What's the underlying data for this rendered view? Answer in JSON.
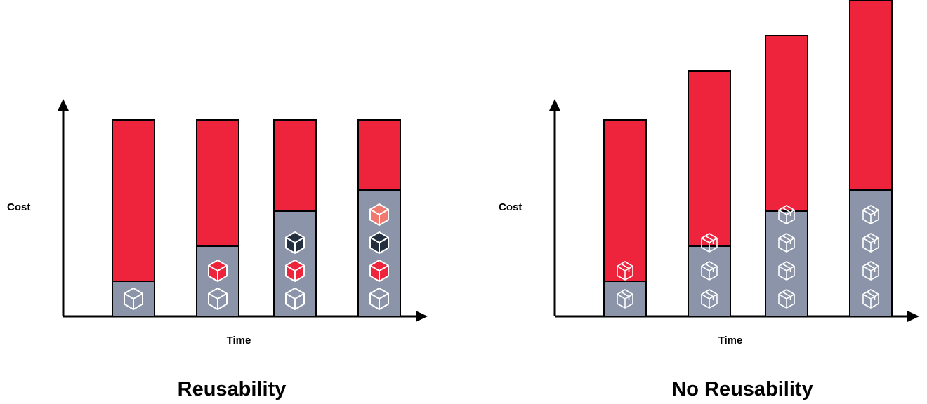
{
  "colors": {
    "red": "#ee243d",
    "slate": "#8b94a8",
    "dark": "#232f3e",
    "light": "#ffffff",
    "light_red": "#f07a70"
  },
  "charts": [
    {
      "id": "reusability",
      "title": "Reusability",
      "ylabel": "Cost",
      "xlabel": "Time",
      "bars": [
        {
          "total": 280,
          "component": 50,
          "icons": [
            "light"
          ]
        },
        {
          "total": 280,
          "component": 100,
          "icons": [
            "light",
            "red"
          ]
        },
        {
          "total": 280,
          "component": 150,
          "icons": [
            "light",
            "red",
            "dark"
          ]
        },
        {
          "total": 280,
          "component": 180,
          "icons": [
            "light",
            "red",
            "dark",
            "lightred"
          ]
        }
      ]
    },
    {
      "id": "no-reusability",
      "title": "No Reusability",
      "ylabel": "Cost",
      "xlabel": "Time",
      "bars": [
        {
          "total": 280,
          "component": 50,
          "icons": [
            "package",
            "package"
          ]
        },
        {
          "total": 350,
          "component": 100,
          "icons": [
            "package",
            "package",
            "package"
          ]
        },
        {
          "total": 400,
          "component": 150,
          "icons": [
            "package",
            "package",
            "package",
            "package"
          ]
        },
        {
          "total": 450,
          "component": 180,
          "icons": [
            "package",
            "package",
            "package",
            "package"
          ]
        }
      ]
    }
  ]
}
